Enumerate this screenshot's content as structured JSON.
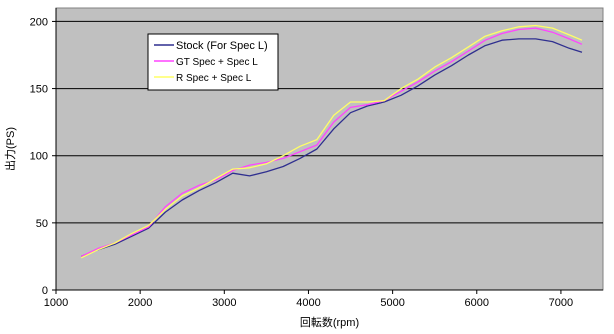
{
  "chart_data": {
    "type": "line",
    "xlabel": "回転数(rpm)",
    "ylabel": "出力(PS)",
    "xlim": [
      1000,
      7500
    ],
    "ylim": [
      0,
      210
    ],
    "xticks": [
      1000,
      2000,
      3000,
      4000,
      5000,
      6000,
      7000
    ],
    "yticks": [
      0,
      50,
      100,
      150,
      200
    ],
    "xtick_labels": [
      "1000",
      "2000",
      "3000",
      "4000",
      "5000",
      "6000",
      "7000"
    ],
    "ytick_labels": [
      "0",
      "50",
      "100",
      "150",
      "200"
    ],
    "grid": "horizontal",
    "legend_position": "top-left",
    "series": [
      {
        "name": "Stock (For Spec L)",
        "color": "#2f2f8f",
        "x": [
          1300,
          1500,
          1700,
          1900,
          2100,
          2300,
          2500,
          2700,
          2900,
          3100,
          3300,
          3500,
          3700,
          3900,
          4100,
          4300,
          4500,
          4700,
          4900,
          5100,
          5300,
          5500,
          5700,
          5900,
          6100,
          6300,
          6500,
          6700,
          6900,
          7100,
          7250
        ],
        "values": [
          25,
          30,
          34,
          40,
          46,
          58,
          67,
          74,
          80,
          87,
          85,
          88,
          92,
          98,
          105,
          120,
          132,
          137,
          140,
          145,
          152,
          160,
          167,
          175,
          182,
          186,
          187,
          187,
          185,
          180,
          177
        ]
      },
      {
        "name": "GT Spec  +  Spec L",
        "color": "#ff44ff",
        "x": [
          1300,
          1500,
          1700,
          1900,
          2100,
          2300,
          2500,
          2700,
          2900,
          3100,
          3300,
          3500,
          3700,
          3900,
          4100,
          4300,
          4500,
          4700,
          4900,
          5100,
          5300,
          5500,
          5700,
          5900,
          6100,
          6300,
          6500,
          6700,
          6900,
          7100,
          7250
        ],
        "values": [
          25,
          31,
          35,
          41,
          47,
          62,
          72,
          78,
          82,
          89,
          93,
          95,
          98,
          103,
          108,
          125,
          136,
          138,
          141,
          148,
          155,
          163,
          170,
          178,
          186,
          191,
          194,
          195,
          192,
          187,
          183
        ]
      },
      {
        "name": "R Spec  +  Spec L",
        "color": "#ffff66",
        "x": [
          1300,
          1500,
          1700,
          1900,
          2100,
          2300,
          2500,
          2700,
          2900,
          3100,
          3300,
          3500,
          3700,
          3900,
          4100,
          4300,
          4500,
          4700,
          4900,
          5100,
          5300,
          5500,
          5700,
          5900,
          6100,
          6300,
          6500,
          6700,
          6900,
          7100,
          7250
        ],
        "values": [
          24,
          30,
          35,
          42,
          48,
          60,
          70,
          76,
          83,
          90,
          91,
          94,
          100,
          107,
          112,
          130,
          140,
          140,
          141,
          150,
          157,
          166,
          173,
          181,
          189,
          193,
          196,
          197,
          195,
          190,
          186
        ]
      }
    ]
  }
}
